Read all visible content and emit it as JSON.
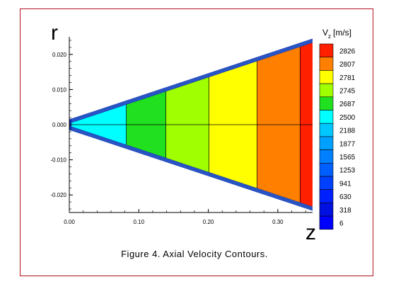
{
  "chart_data": {
    "type": "heatmap",
    "title": "",
    "xlabel": "z",
    "ylabel": "r",
    "xlim": [
      0.0,
      0.35
    ],
    "ylim": [
      -0.025,
      0.025
    ],
    "x_ticks": [
      "0.00",
      "0.10",
      "0.20",
      "0.30"
    ],
    "x_tick_values": [
      0.0,
      0.1,
      0.2,
      0.3
    ],
    "y_ticks": [
      "0.020",
      "0.010",
      "0.000",
      "-0.010",
      "-0.020"
    ],
    "y_tick_values": [
      0.02,
      0.01,
      0.0,
      -0.01,
      -0.02
    ],
    "legend": {
      "title_main": "V",
      "title_sub": "z",
      "title_unit": "[m/s]",
      "placement": "right",
      "levels": [
        "2826",
        "2807",
        "2781",
        "2745",
        "2687",
        "2500",
        "2188",
        "1877",
        "1565",
        "1253",
        "941",
        "630",
        "318",
        "6"
      ],
      "colors": [
        "#ff2000",
        "#ff8000",
        "#ffff00",
        "#a0ff00",
        "#20e020",
        "#00ffff",
        "#00c8ff",
        "#00a0ff",
        "#0080ff",
        "#0060ff",
        "#0040ff",
        "#0020ff",
        "#0010e0",
        "#0000ff"
      ]
    },
    "regions": [
      {
        "level": "2500",
        "z_start": 0.003,
        "z_end": 0.082
      },
      {
        "level": "2687",
        "z_start": 0.082,
        "z_end": 0.139
      },
      {
        "level": "2745",
        "z_start": 0.139,
        "z_end": 0.201
      },
      {
        "level": "2781",
        "z_start": 0.201,
        "z_end": 0.27
      },
      {
        "level": "2807",
        "z_start": 0.27,
        "z_end": 0.332
      },
      {
        "level": "2826",
        "z_start": 0.332,
        "z_end": 0.35
      }
    ],
    "cone_half_width": {
      "z": [
        0.0,
        0.35
      ],
      "r": [
        0.0015,
        0.0245
      ]
    }
  },
  "caption": "Figure 4. Axial Velocity Contours."
}
